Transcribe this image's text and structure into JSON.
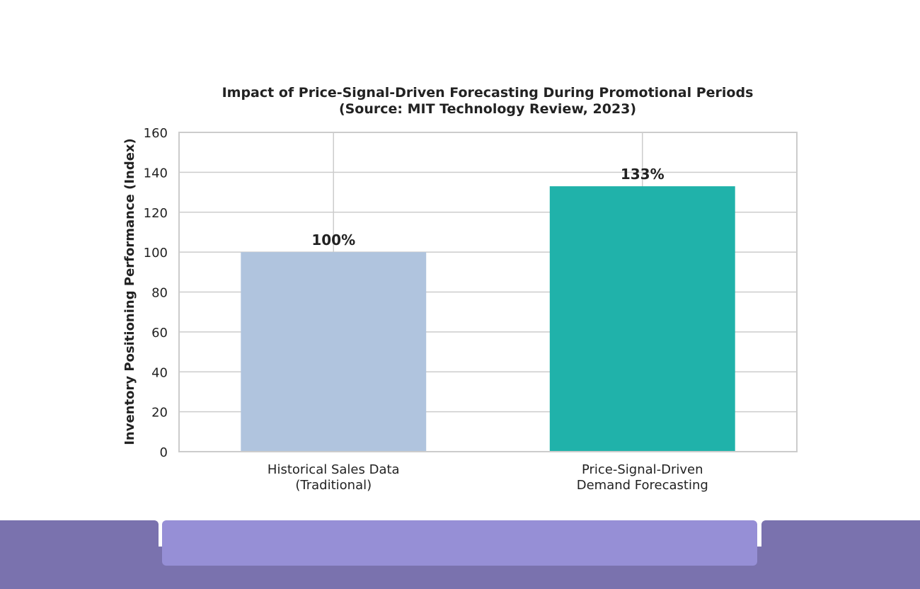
{
  "chart_data": {
    "type": "bar",
    "title": "Impact of Price-Signal-Driven Forecasting During Promotional Periods",
    "subtitle": "(Source: MIT Technology Review, 2023)",
    "ylabel": "Inventory Positioning Performance (Index)",
    "xlabel": "",
    "categories": [
      [
        "Historical Sales Data",
        "(Traditional)"
      ],
      [
        "Price-Signal-Driven",
        "Demand Forecasting"
      ]
    ],
    "values": [
      100,
      133
    ],
    "value_labels": [
      "100%",
      "133%"
    ],
    "bar_colors": [
      "#b0c4de",
      "#20b2aa"
    ],
    "ylim": [
      0,
      160
    ],
    "yticks": [
      0,
      20,
      40,
      60,
      80,
      100,
      120,
      140,
      160
    ],
    "grid": true,
    "legend": "none"
  },
  "footer": {
    "band_color": "#7a72ae",
    "center_color": "#968fd6"
  }
}
